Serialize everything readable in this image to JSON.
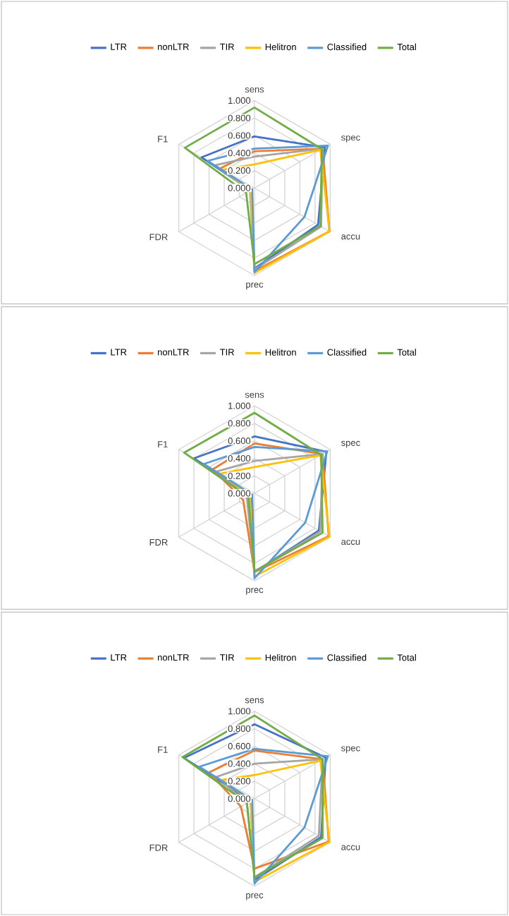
{
  "chart_data": [
    {
      "type": "radar",
      "categories": [
        "sens",
        "spec",
        "accu",
        "prec",
        "FDR",
        "F1"
      ],
      "ylim": [
        0,
        1
      ],
      "yticks": [
        {
          "value": 0,
          "label": "0.000"
        },
        {
          "value": 0.2,
          "label": "0.200"
        },
        {
          "value": 0.4,
          "label": "0.400"
        },
        {
          "value": 0.6,
          "label": "0.600"
        },
        {
          "value": 0.8,
          "label": "0.800"
        },
        {
          "value": 1,
          "label": "1.000"
        }
      ],
      "grid": true,
      "legend": "top",
      "series": [
        {
          "name": "LTR",
          "color": "#4472c4",
          "values": [
            0.59,
            0.93,
            0.84,
            0.92,
            0.05,
            0.7
          ]
        },
        {
          "name": "nonLTR",
          "color": "#ed7d31",
          "values": [
            0.42,
            0.9,
            0.99,
            0.95,
            0.05,
            0.45
          ]
        },
        {
          "name": "TIR",
          "color": "#a5a5a5",
          "values": [
            0.36,
            0.9,
            0.88,
            0.93,
            0.06,
            0.52
          ]
        },
        {
          "name": "Helitron",
          "color": "#ffc000",
          "values": [
            0.27,
            0.87,
            0.99,
            0.97,
            0.05,
            0.42
          ]
        },
        {
          "name": "Classified",
          "color": "#5b9bd5",
          "values": [
            0.45,
            0.97,
            0.66,
            0.96,
            0.03,
            0.62
          ]
        },
        {
          "name": "Total",
          "color": "#70ad47",
          "values": [
            0.92,
            0.89,
            0.87,
            0.87,
            0.11,
            0.92
          ]
        }
      ]
    },
    {
      "type": "radar",
      "categories": [
        "sens",
        "spec",
        "accu",
        "prec",
        "FDR",
        "F1"
      ],
      "ylim": [
        0,
        1
      ],
      "yticks": [
        {
          "value": 0,
          "label": "0.000"
        },
        {
          "value": 0.2,
          "label": "0.200"
        },
        {
          "value": 0.4,
          "label": "0.400"
        },
        {
          "value": 0.6,
          "label": "0.600"
        },
        {
          "value": 0.8,
          "label": "0.800"
        },
        {
          "value": 1,
          "label": "1.000"
        }
      ],
      "grid": true,
      "legend": "top",
      "series": [
        {
          "name": "LTR",
          "color": "#4472c4",
          "values": [
            0.65,
            0.95,
            0.85,
            0.9,
            0.05,
            0.8
          ]
        },
        {
          "name": "nonLTR",
          "color": "#ed7d31",
          "values": [
            0.57,
            0.9,
            0.98,
            0.9,
            0.15,
            0.55
          ]
        },
        {
          "name": "TIR",
          "color": "#a5a5a5",
          "values": [
            0.37,
            0.9,
            0.87,
            0.9,
            0.1,
            0.5
          ]
        },
        {
          "name": "Helitron",
          "color": "#ffc000",
          "values": [
            0.3,
            0.87,
            0.99,
            0.95,
            0.06,
            0.45
          ]
        },
        {
          "name": "Classified",
          "color": "#5b9bd5",
          "values": [
            0.53,
            0.96,
            0.67,
            0.97,
            0.03,
            0.67
          ]
        },
        {
          "name": "Total",
          "color": "#70ad47",
          "values": [
            0.92,
            0.88,
            0.9,
            0.89,
            0.08,
            0.93
          ]
        }
      ]
    },
    {
      "type": "radar",
      "categories": [
        "sens",
        "spec",
        "accu",
        "prec",
        "FDR",
        "F1"
      ],
      "ylim": [
        0,
        1
      ],
      "yticks": [
        {
          "value": 0,
          "label": "0.000"
        },
        {
          "value": 0.2,
          "label": "0.200"
        },
        {
          "value": 0.4,
          "label": "0.400"
        },
        {
          "value": 0.6,
          "label": "0.600"
        },
        {
          "value": 0.8,
          "label": "0.800"
        },
        {
          "value": 1,
          "label": "1.000"
        }
      ],
      "grid": true,
      "legend": "top",
      "series": [
        {
          "name": "LTR",
          "color": "#4472c4",
          "values": [
            0.85,
            0.94,
            0.88,
            0.93,
            0.05,
            0.93
          ]
        },
        {
          "name": "nonLTR",
          "color": "#ed7d31",
          "values": [
            0.55,
            0.9,
            0.98,
            0.8,
            0.18,
            0.6
          ]
        },
        {
          "name": "TIR",
          "color": "#a5a5a5",
          "values": [
            0.4,
            0.9,
            0.85,
            0.9,
            0.1,
            0.5
          ]
        },
        {
          "name": "Helitron",
          "color": "#ffc000",
          "values": [
            0.27,
            0.87,
            0.99,
            0.95,
            0.05,
            0.43
          ]
        },
        {
          "name": "Classified",
          "color": "#5b9bd5",
          "values": [
            0.57,
            0.97,
            0.66,
            0.97,
            0.03,
            0.73
          ]
        },
        {
          "name": "Total",
          "color": "#70ad47",
          "values": [
            0.95,
            0.9,
            0.9,
            0.9,
            0.1,
            0.95
          ]
        }
      ]
    }
  ]
}
